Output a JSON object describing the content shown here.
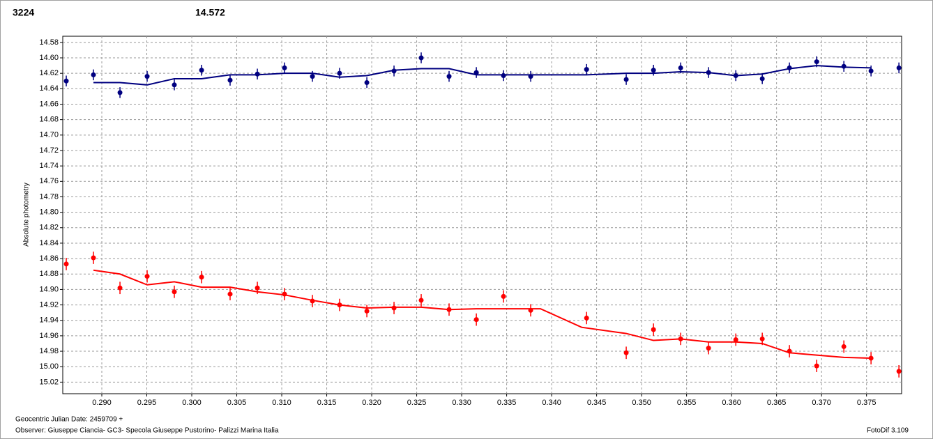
{
  "chart_data": {
    "type": "scatter",
    "title": "3224",
    "title_color": "#ff0000",
    "subtitle": "14.572",
    "subtitle_color": "#000080",
    "ylabel": "Absolute photometry",
    "notes": [
      "Geocentric Julian Date: 2459709 +",
      "Observer: Giuseppe Ciancia- GC3- Specola Giuseppe Pustorino- Palizzi Marina Italia"
    ],
    "credit": "FotoDif 3.109",
    "grid": true,
    "y_inverted": true,
    "xlim": [
      0.28566,
      0.3789
    ],
    "ylim": [
      14.572,
      15.035
    ],
    "xticks": [
      {
        "value": 0.29,
        "label": "0.290"
      },
      0.295,
      {
        "value": 0.3,
        "label": "0.300"
      },
      0.305,
      {
        "value": 0.31,
        "label": "0.310"
      },
      0.315,
      {
        "value": 0.32,
        "label": "0.320"
      },
      0.325,
      {
        "value": 0.33,
        "label": "0.330"
      },
      0.335,
      {
        "value": 0.34,
        "label": "0.340"
      },
      0.345,
      {
        "value": 0.35,
        "label": "0.350"
      },
      0.355,
      {
        "value": 0.36,
        "label": "0.360"
      },
      0.365,
      {
        "value": 0.37,
        "label": "0.370"
      },
      0.375
    ],
    "yticks": [
      14.58,
      {
        "value": 14.6,
        "label": "14.60"
      },
      14.62,
      14.64,
      14.66,
      14.68,
      {
        "value": 14.7,
        "label": "14.70"
      },
      14.72,
      14.74,
      14.76,
      14.78,
      {
        "value": 14.8,
        "label": "14.80"
      },
      14.82,
      14.84,
      14.86,
      14.88,
      {
        "value": 14.9,
        "label": "14.90"
      },
      14.92,
      14.94,
      14.96,
      14.98,
      {
        "value": 15,
        "label": "15.00"
      },
      15.02
    ],
    "series": [
      {
        "color": "#000080",
        "error": 0.007,
        "x": [
          0.28605,
          0.28907,
          0.29202,
          0.29504,
          0.29806,
          0.30109,
          0.30426,
          0.30729,
          0.31031,
          0.31341,
          0.31643,
          0.31946,
          0.32248,
          0.3255,
          0.3286,
          0.33163,
          0.33465,
          0.33767,
          0.34388,
          0.34829,
          0.35132,
          0.35434,
          0.35744,
          0.36047,
          0.36341,
          0.36643,
          0.36946,
          0.37248,
          0.3755,
          0.3786
        ],
        "values": [
          14.63,
          14.622,
          14.645,
          14.624,
          14.635,
          14.616,
          14.629,
          14.621,
          14.613,
          14.624,
          14.62,
          14.632,
          14.617,
          14.6,
          14.624,
          14.619,
          14.623,
          14.624,
          14.615,
          14.628,
          14.616,
          14.613,
          14.619,
          14.623,
          14.627,
          14.613,
          14.605,
          14.611,
          14.617,
          14.613
        ]
      },
      {
        "color": "#ff0000",
        "error": 0.008,
        "x": [
          0.28605,
          0.28907,
          0.29202,
          0.29504,
          0.29806,
          0.30109,
          0.30426,
          0.30729,
          0.31031,
          0.31341,
          0.31643,
          0.31946,
          0.32248,
          0.3255,
          0.3286,
          0.33163,
          0.33465,
          0.33767,
          0.34388,
          0.34829,
          0.35132,
          0.35434,
          0.35744,
          0.36047,
          0.36341,
          0.36643,
          0.36946,
          0.37248,
          0.3755,
          0.3786
        ],
        "values": [
          14.867,
          14.859,
          14.898,
          14.883,
          14.903,
          14.884,
          14.906,
          14.898,
          14.906,
          14.915,
          14.92,
          14.928,
          14.924,
          14.914,
          14.926,
          14.939,
          14.909,
          14.927,
          14.937,
          14.982,
          14.952,
          14.964,
          14.976,
          14.965,
          14.964,
          14.98,
          14.999,
          14.974,
          14.989,
          15.006
        ]
      }
    ],
    "fits": [
      {
        "color": "#000080",
        "x": [
          0.28907,
          0.29202,
          0.29504,
          0.29806,
          0.30109,
          0.30426,
          0.30729,
          0.31031,
          0.31341,
          0.31643,
          0.31946,
          0.32248,
          0.3255,
          0.3286,
          0.33163,
          0.33465,
          0.33767,
          0.34388,
          0.34829,
          0.35132,
          0.35434,
          0.35744,
          0.36047,
          0.36341,
          0.36643,
          0.36946,
          0.37248,
          0.3755
        ],
        "values": [
          14.632,
          14.632,
          14.635,
          14.627,
          14.627,
          14.622,
          14.622,
          14.62,
          14.62,
          14.625,
          14.623,
          14.616,
          14.614,
          14.614,
          14.622,
          14.622,
          14.622,
          14.622,
          14.62,
          14.62,
          14.618,
          14.619,
          14.623,
          14.621,
          14.614,
          14.61,
          14.612,
          14.613
        ]
      },
      {
        "color": "#ff0000",
        "x": [
          0.28907,
          0.29202,
          0.29504,
          0.29806,
          0.30109,
          0.30426,
          0.30729,
          0.31031,
          0.31341,
          0.31643,
          0.31946,
          0.32248,
          0.3255,
          0.3286,
          0.33163,
          0.33465,
          0.33876,
          0.34333,
          0.34829,
          0.35132,
          0.35434,
          0.35744,
          0.36047,
          0.36341,
          0.36643,
          0.36946,
          0.37248,
          0.3755
        ],
        "values": [
          14.875,
          14.88,
          14.894,
          14.89,
          14.897,
          14.897,
          14.903,
          14.907,
          14.914,
          14.92,
          14.924,
          14.923,
          14.923,
          14.926,
          14.925,
          14.925,
          14.925,
          14.949,
          14.957,
          14.966,
          14.964,
          14.968,
          14.968,
          14.97,
          14.982,
          14.985,
          14.988,
          14.989
        ]
      }
    ]
  }
}
